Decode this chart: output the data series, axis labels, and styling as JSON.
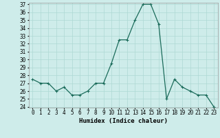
{
  "x": [
    0,
    1,
    2,
    3,
    4,
    5,
    6,
    7,
    8,
    9,
    10,
    11,
    12,
    13,
    14,
    15,
    16,
    17,
    18,
    19,
    20,
    21,
    22,
    23
  ],
  "y": [
    27.5,
    27.0,
    27.0,
    26.0,
    26.5,
    25.5,
    25.5,
    26.0,
    27.0,
    27.0,
    29.5,
    32.5,
    32.5,
    35.0,
    37.0,
    37.0,
    34.5,
    25.0,
    27.5,
    26.5,
    26.0,
    25.5,
    25.5,
    24.0
  ],
  "line_color": "#1a6b5a",
  "marker": "+",
  "markersize": 3,
  "linewidth": 0.9,
  "bg_color": "#ceecea",
  "grid_color": "#aed8d4",
  "xlabel": "Humidex (Indice chaleur)",
  "ylim": [
    24,
    37
  ],
  "xlim": [
    -0.5,
    23.5
  ],
  "yticks": [
    24,
    25,
    26,
    27,
    28,
    29,
    30,
    31,
    32,
    33,
    34,
    35,
    36,
    37
  ],
  "xticks": [
    0,
    1,
    2,
    3,
    4,
    5,
    6,
    7,
    8,
    9,
    10,
    11,
    12,
    13,
    14,
    15,
    16,
    17,
    18,
    19,
    20,
    21,
    22,
    23
  ],
  "tick_fontsize": 5.5,
  "label_fontsize": 6.5
}
